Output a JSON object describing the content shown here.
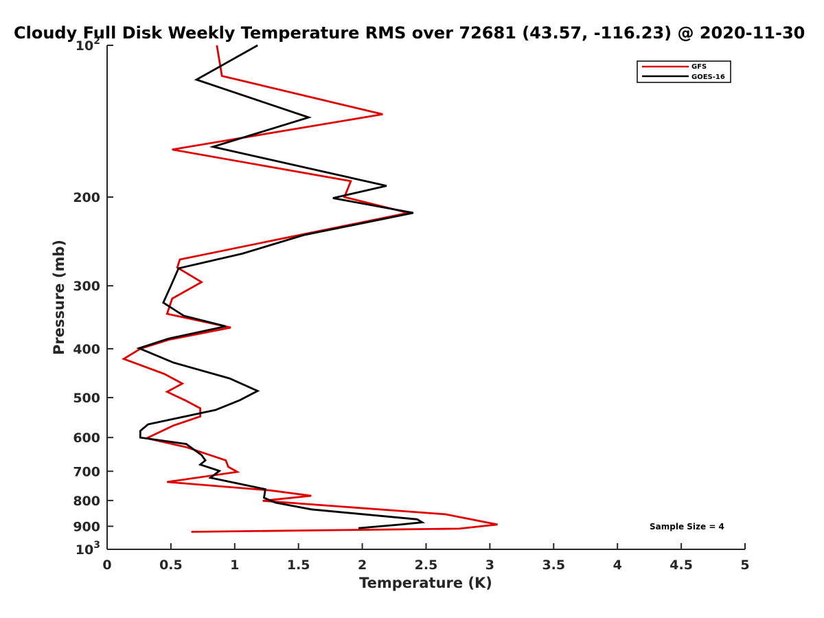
{
  "chart_data": {
    "type": "line",
    "title": "Cloudy Full Disk Weekly Temperature RMS over 72681 (43.57, -116.23) @ 2020-11-30",
    "xlabel": "Temperature (K)",
    "ylabel": "Pressure (mb)",
    "xlim": [
      0,
      5
    ],
    "ylim": [
      100,
      1000
    ],
    "yscale": "log",
    "y_reversed": true,
    "xticks": [
      "0",
      "0.5",
      "1",
      "1.5",
      "2",
      "2.5",
      "3",
      "3.5",
      "4",
      "4.5",
      "5"
    ],
    "yticks": [
      {
        "value": 100,
        "base": "10",
        "exp": "2"
      },
      {
        "value": 200,
        "label": "200"
      },
      {
        "value": 300,
        "label": "300"
      },
      {
        "value": 400,
        "label": "400"
      },
      {
        "value": 500,
        "label": "500"
      },
      {
        "value": 600,
        "label": "600"
      },
      {
        "value": 700,
        "label": "700"
      },
      {
        "value": 800,
        "label": "800"
      },
      {
        "value": 900,
        "label": "900"
      },
      {
        "value": 1000,
        "base": "10",
        "exp": "3"
      }
    ],
    "grid": false,
    "legend_position": "top-right",
    "annotation": "Sample Size = 4",
    "series": [
      {
        "name": "GFS",
        "color": "#e00000",
        "points": [
          [
            0.86,
            100
          ],
          [
            0.9,
            115
          ],
          [
            2.16,
            137
          ],
          [
            0.51,
            161
          ],
          [
            1.91,
            186
          ],
          [
            1.86,
            200
          ],
          [
            2.36,
            215
          ],
          [
            0.57,
            266
          ],
          [
            0.55,
            276
          ],
          [
            0.74,
            295
          ],
          [
            0.51,
            318
          ],
          [
            0.47,
            341
          ],
          [
            0.97,
            363
          ],
          [
            0.48,
            384
          ],
          [
            0.26,
            400
          ],
          [
            0.13,
            419
          ],
          [
            0.45,
            449
          ],
          [
            0.59,
            469
          ],
          [
            0.47,
            487
          ],
          [
            0.61,
            506
          ],
          [
            0.73,
            525
          ],
          [
            0.73,
            545
          ],
          [
            0.52,
            568
          ],
          [
            0.31,
            602
          ],
          [
            0.62,
            627
          ],
          [
            0.93,
            666
          ],
          [
            0.95,
            686
          ],
          [
            1.02,
            702
          ],
          [
            0.47,
            735
          ],
          [
            1.28,
            764
          ],
          [
            1.6,
            783
          ],
          [
            1.22,
            801
          ],
          [
            2.65,
            852
          ],
          [
            3.06,
            893
          ],
          [
            2.76,
            910
          ],
          [
            0.66,
            923
          ]
        ]
      },
      {
        "name": "GOES-16",
        "color": "#000000",
        "points": [
          [
            1.18,
            100
          ],
          [
            0.7,
            117
          ],
          [
            1.58,
            139
          ],
          [
            0.83,
            159
          ],
          [
            2.19,
            190
          ],
          [
            1.77,
            201
          ],
          [
            2.4,
            215
          ],
          [
            1.54,
            238
          ],
          [
            1.06,
            259
          ],
          [
            0.56,
            277
          ],
          [
            0.5,
            300
          ],
          [
            0.44,
            324
          ],
          [
            0.6,
            344
          ],
          [
            0.93,
            361
          ],
          [
            0.48,
            382
          ],
          [
            0.25,
            399
          ],
          [
            0.52,
            426
          ],
          [
            0.96,
            458
          ],
          [
            1.18,
            485
          ],
          [
            1.04,
            506
          ],
          [
            0.85,
            529
          ],
          [
            0.32,
            565
          ],
          [
            0.26,
            582
          ],
          [
            0.26,
            600
          ],
          [
            0.62,
            618
          ],
          [
            0.74,
            650
          ],
          [
            0.77,
            666
          ],
          [
            0.73,
            679
          ],
          [
            0.88,
            699
          ],
          [
            0.81,
            721
          ],
          [
            1.24,
            760
          ],
          [
            1.23,
            790
          ],
          [
            1.32,
            808
          ],
          [
            1.6,
            833
          ],
          [
            2.43,
            872
          ],
          [
            2.47,
            884
          ],
          [
            2.3,
            893
          ],
          [
            1.97,
            908
          ]
        ]
      }
    ]
  }
}
